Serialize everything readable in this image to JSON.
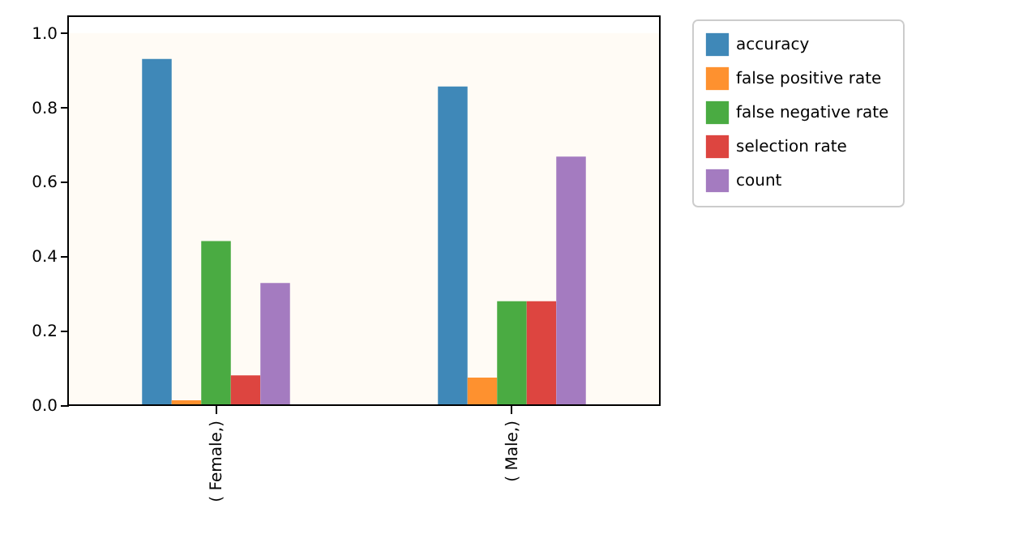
{
  "chart_data": {
    "type": "bar",
    "categories": [
      "( Female,)",
      "( Male,)"
    ],
    "series": [
      {
        "name": "accuracy",
        "color": "#3f88b8",
        "values": [
          0.93,
          0.856
        ]
      },
      {
        "name": "false positive rate",
        "color": "#fe912f",
        "values": [
          0.013,
          0.074
        ]
      },
      {
        "name": "false negative rate",
        "color": "#4aab42",
        "values": [
          0.441,
          0.279
        ]
      },
      {
        "name": "selection rate",
        "color": "#dd4540",
        "values": [
          0.08,
          0.279
        ]
      },
      {
        "name": "count",
        "color": "#a47bc0",
        "values": [
          0.328,
          0.668
        ]
      }
    ],
    "ylim": [
      0,
      1.045
    ],
    "yticks": [
      {
        "value": 0,
        "label": "0.0"
      },
      {
        "value": 0.2,
        "label": "0.2"
      },
      {
        "value": 0.4,
        "label": "0.4"
      },
      {
        "value": 0.6,
        "label": "0.6"
      },
      {
        "value": 0.8,
        "label": "0.8"
      },
      {
        "value": 1,
        "label": "1.0"
      }
    ],
    "bands": [
      {
        "axis": "y",
        "from": 0,
        "to": 1,
        "color": "#fffbf5"
      }
    ],
    "grid": false,
    "legend": "top right"
  }
}
